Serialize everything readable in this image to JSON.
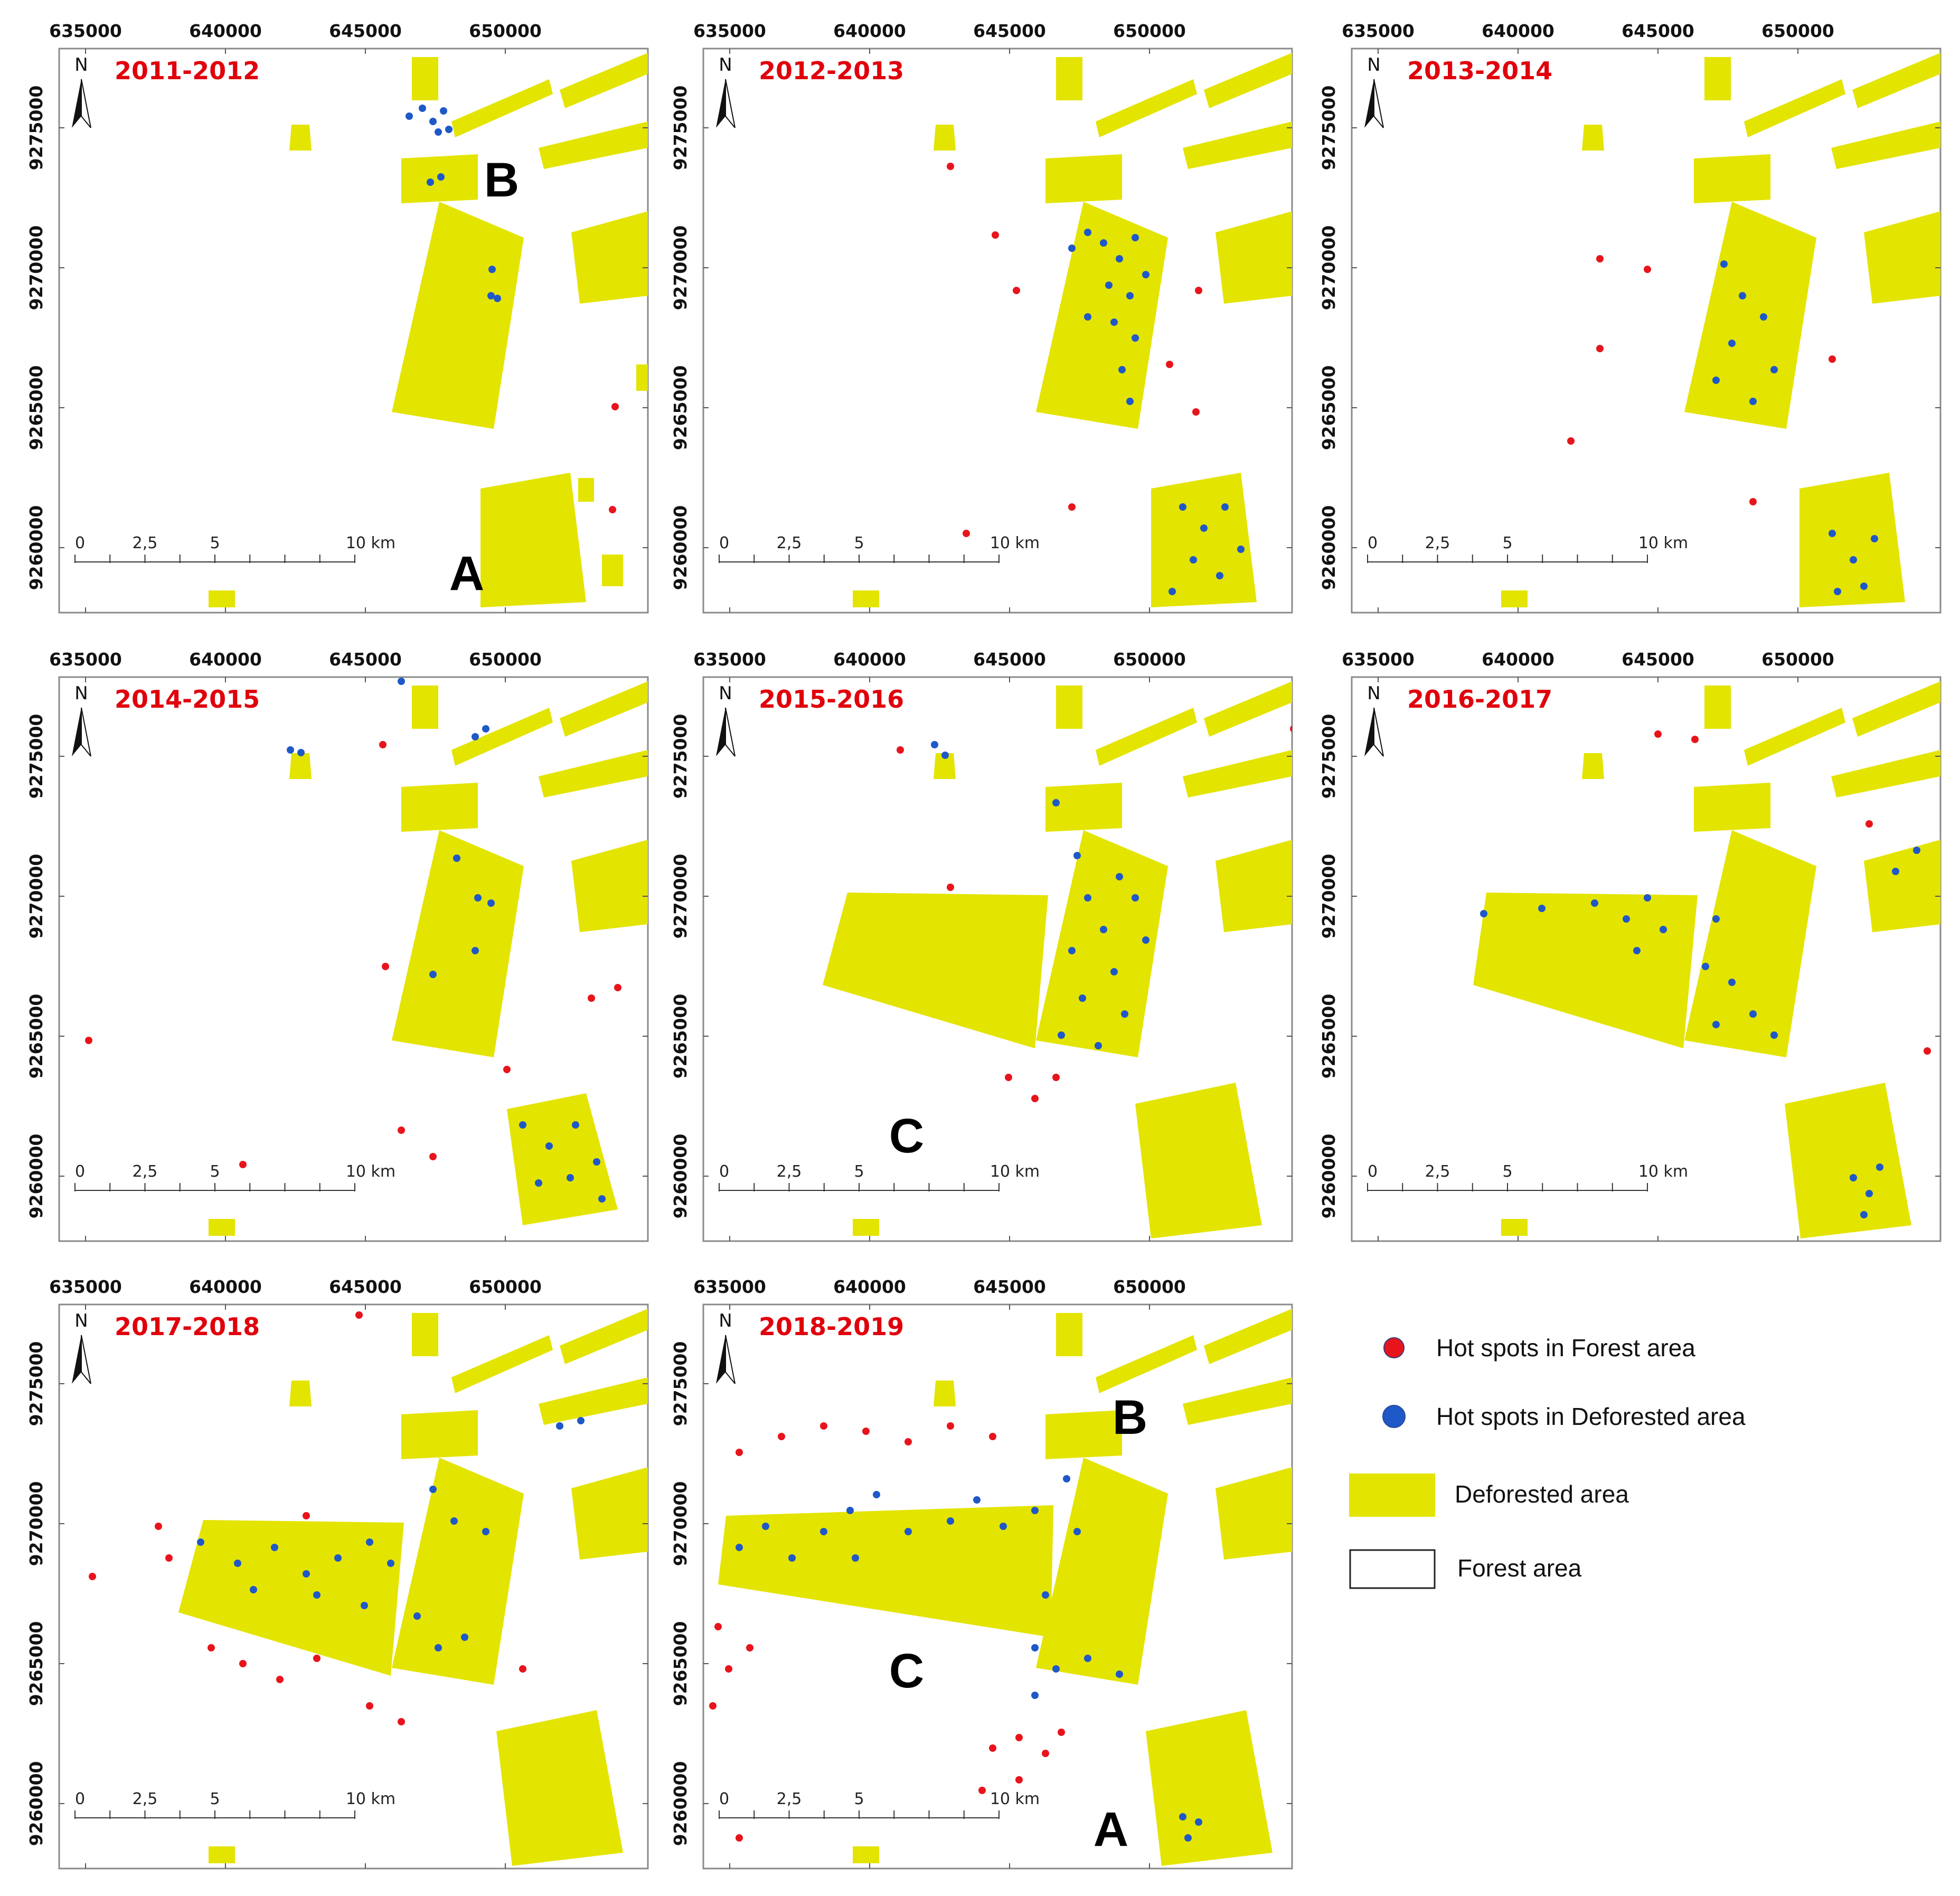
{
  "colors": {
    "deforested": "#e3e400",
    "hotspot_forest": "#e8141c",
    "hotspot_deforested": "#1f58c8",
    "frame": "#8a8a8a"
  },
  "axes": {
    "x_ticks": [
      "635000",
      "640000",
      "645000",
      "650000"
    ],
    "y_ticks": [
      "9275000",
      "9270000",
      "9265000",
      "9260000"
    ]
  },
  "north_label": "N",
  "scale_bar": {
    "labels": [
      "0",
      "2,5",
      "5",
      "10 km"
    ]
  },
  "panels": [
    {
      "title": "2011-2012",
      "zone_labels": [
        "B",
        "A"
      ]
    },
    {
      "title": "2012-2013",
      "zone_labels": []
    },
    {
      "title": "2013-2014",
      "zone_labels": []
    },
    {
      "title": "2014-2015",
      "zone_labels": []
    },
    {
      "title": "2015-2016",
      "zone_labels": [
        "C"
      ]
    },
    {
      "title": "2016-2017",
      "zone_labels": []
    },
    {
      "title": "2017-2018",
      "zone_labels": []
    },
    {
      "title": "2018-2019",
      "zone_labels": [
        "B",
        "C",
        "A"
      ]
    }
  ],
  "legend": {
    "items": [
      {
        "label": "Hot spots in Forest area"
      },
      {
        "label": "Hot spots in Deforested area"
      },
      {
        "label": "Deforested area"
      },
      {
        "label": "Forest area"
      }
    ]
  }
}
